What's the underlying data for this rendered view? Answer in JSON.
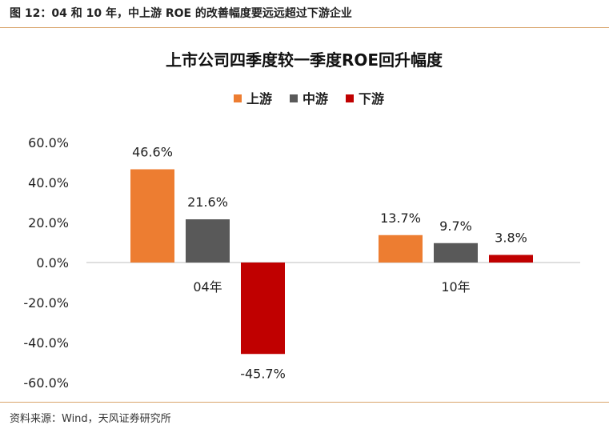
{
  "figure_title": "图 12：04 和 10 年，中上游 ROE 的改善幅度要远远超过下游企业",
  "source": "资料来源：Wind，天风证券研究所",
  "chart_data": {
    "type": "bar",
    "title": "上市公司四季度较一季度ROE回升幅度",
    "categories": [
      "04年",
      "10年"
    ],
    "series": [
      {
        "name": "上游",
        "color": "#ED7D31",
        "values": [
          46.6,
          13.7
        ],
        "labels": [
          "46.6%",
          "13.7%"
        ]
      },
      {
        "name": "中游",
        "color": "#595959",
        "values": [
          21.6,
          9.7
        ],
        "labels": [
          "21.6%",
          "9.7%"
        ]
      },
      {
        "name": "下游",
        "color": "#C00000",
        "values": [
          -45.7,
          3.8
        ],
        "labels": [
          "-45.7%",
          "3.8%"
        ]
      }
    ],
    "yticks": [
      "60.0%",
      "40.0%",
      "20.0%",
      "0.0%",
      "-20.0%",
      "-40.0%",
      "-60.0%"
    ],
    "ytick_values": [
      60,
      40,
      20,
      0,
      -20,
      -40,
      -60
    ],
    "ylim": [
      -60,
      60
    ],
    "legend_position": "top-center",
    "grid": false
  }
}
